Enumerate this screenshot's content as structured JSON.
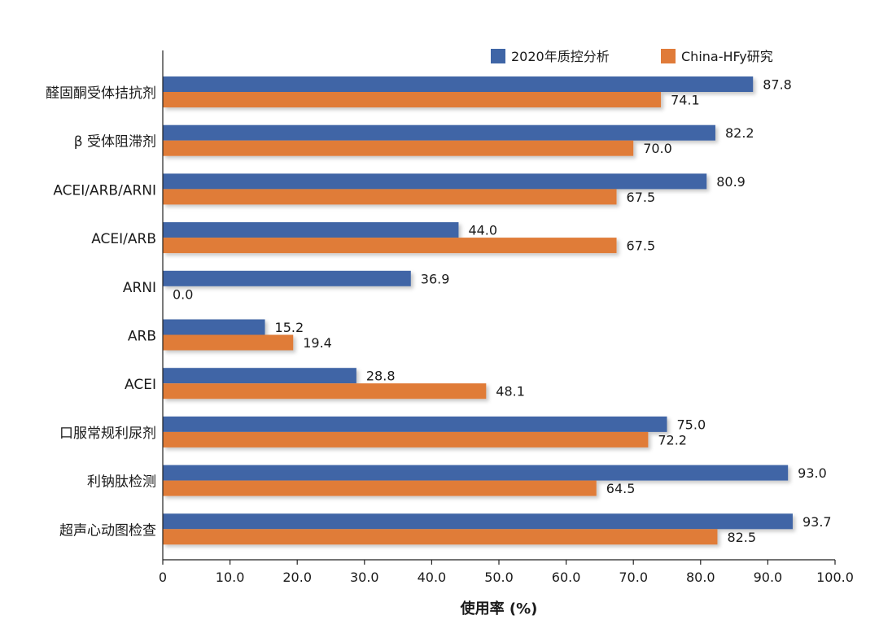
{
  "chart_data": {
    "type": "bar",
    "orientation": "horizontal",
    "categories": [
      "醛固酮受体拮抗剂",
      "β 受体阻滞剂",
      "ACEI/ARB/ARNI",
      "ACEI/ARB",
      "ARNI",
      "ARB",
      "ACEI",
      "口服常规利尿剂",
      "利钠肽检测",
      "超声心动图检查"
    ],
    "series": [
      {
        "name": "2020年质控分析",
        "color": "#3f65a6",
        "values": [
          87.8,
          82.2,
          80.9,
          44.0,
          36.9,
          15.2,
          28.8,
          75.0,
          93.0,
          93.7
        ]
      },
      {
        "name": "China-HFy研究",
        "color": "#e07b39",
        "values": [
          74.1,
          70.0,
          67.5,
          67.5,
          0.0,
          19.4,
          48.1,
          72.2,
          64.5,
          82.5
        ]
      }
    ],
    "value_labels": [
      [
        "87.8",
        "82.2",
        "80.9",
        "44.0",
        "36.9",
        "15.2",
        "28.8",
        "75.0",
        "93.0",
        "93.7"
      ],
      [
        "74.1",
        "70.0",
        "67.5",
        "67.5",
        "0.0",
        "19.4",
        "48.1",
        "72.2",
        "64.5",
        "82.5"
      ]
    ],
    "xlim": [
      0,
      100
    ],
    "xticks": [
      "0",
      "10.0",
      "20.0",
      "30.0",
      "40.0",
      "50.0",
      "60.0",
      "70.0",
      "80.0",
      "90.0",
      "100.0"
    ],
    "xlabel": "使用率 (%)",
    "ylabel": "",
    "title": "",
    "legend": "top-right",
    "grid": false
  }
}
